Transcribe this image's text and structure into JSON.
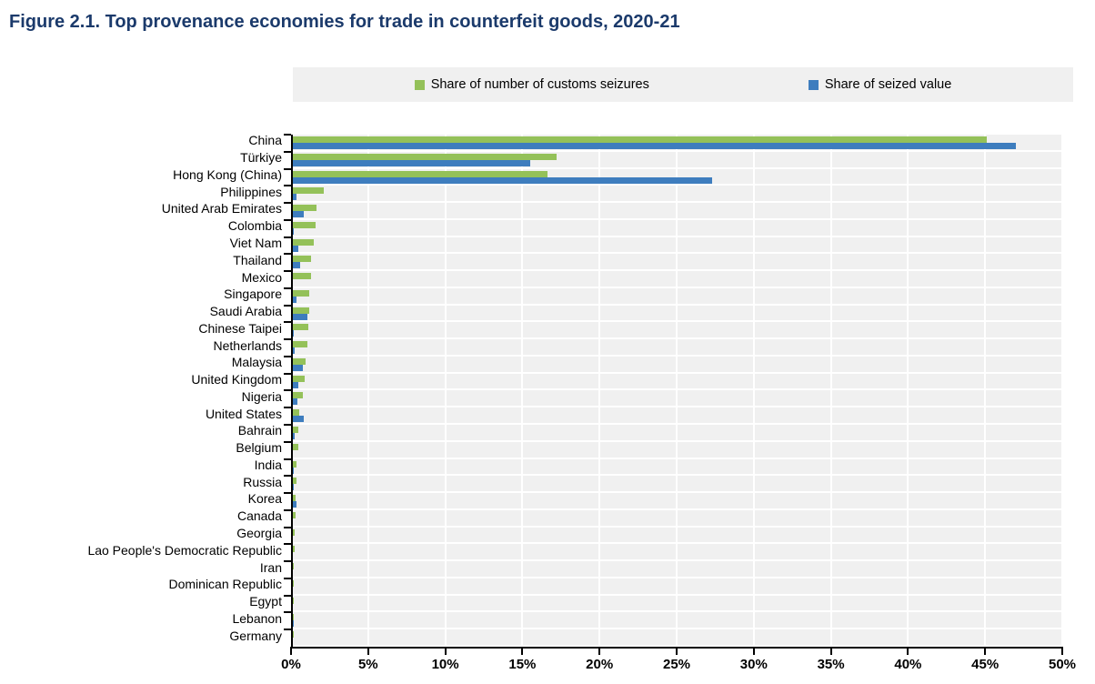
{
  "title": "Figure 2.1. Top provenance economies for trade in counterfeit goods, 2020-21",
  "colors": {
    "title": "#1b3a6b",
    "seizures_green": "#94c159",
    "value_blue": "#3e7dbe",
    "plot_band_gray": "#f0f0f0",
    "legend_background": "#f0f0f0",
    "axis_black": "#000000"
  },
  "legend": {
    "items": [
      {
        "label": "Share of number of customs seizures",
        "color": "#94c159"
      },
      {
        "label": "Share of seized value",
        "color": "#3e7dbe"
      }
    ]
  },
  "chart_data": {
    "type": "bar",
    "orientation": "horizontal",
    "title": "Figure 2.1. Top provenance economies for trade in counterfeit goods, 2020-21",
    "xlabel": "",
    "ylabel": "",
    "xlim": [
      0,
      50
    ],
    "x_tick_labels": [
      "0%",
      "5%",
      "10%",
      "15%",
      "20%",
      "25%",
      "30%",
      "35%",
      "40%",
      "45%",
      "50%"
    ],
    "grid": "vertical white gridlines on gray row bands",
    "legend_position": "top",
    "units": "percent",
    "categories": [
      "China",
      "Türkiye",
      "Hong Kong (China)",
      "Philippines",
      "United Arab Emirates",
      "Colombia",
      "Viet Nam",
      "Thailand",
      "Mexico",
      "Singapore",
      "Saudi Arabia",
      "Chinese Taipei",
      "Netherlands",
      "Malaysia",
      "United Kingdom",
      "Nigeria",
      "United States",
      "Bahrain",
      "Belgium",
      "India",
      "Russia",
      "Korea",
      "Canada",
      "Georgia",
      "Lao People's Democratic Republic",
      "Iran",
      "Dominican Republic",
      "Egypt",
      "Lebanon",
      "Germany"
    ],
    "series": [
      {
        "name": "Share of number of customs seizures",
        "color": "#94c159",
        "values": [
          45.1,
          17.2,
          16.6,
          2.1,
          1.65,
          1.6,
          1.5,
          1.3,
          1.3,
          1.2,
          1.2,
          1.1,
          1.05,
          0.95,
          0.9,
          0.75,
          0.55,
          0.5,
          0.45,
          0.35,
          0.35,
          0.3,
          0.27,
          0.25,
          0.22,
          0.2,
          0.18,
          0.18,
          0.16,
          0.15
        ]
      },
      {
        "name": "Share of seized value",
        "color": "#3e7dbe",
        "values": [
          47.0,
          15.5,
          27.3,
          0.35,
          0.85,
          0.2,
          0.5,
          0.6,
          0.12,
          0.35,
          1.05,
          0.2,
          0.25,
          0.75,
          0.5,
          0.4,
          0.85,
          0.25,
          0.05,
          0.2,
          0.15,
          0.37,
          0.03,
          0.02,
          0.02,
          0.03,
          0.02,
          0.03,
          0.2,
          0.02
        ]
      }
    ]
  }
}
